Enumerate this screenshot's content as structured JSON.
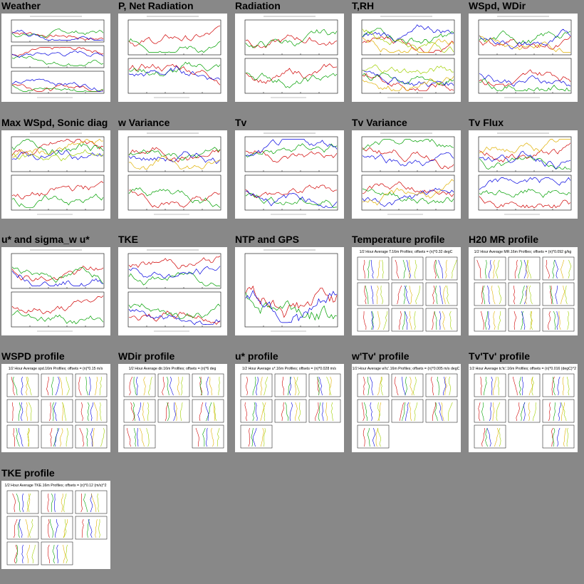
{
  "thumbnails": [
    {
      "title": "Weather",
      "kind": "ts3"
    },
    {
      "title": "P, Net Radiation",
      "kind": "ts2"
    },
    {
      "title": "Radiation",
      "kind": "ts2"
    },
    {
      "title": "T,RH",
      "kind": "ts2"
    },
    {
      "title": "WSpd, WDir",
      "kind": "ts2"
    },
    {
      "title": "Max WSpd, Sonic diag",
      "kind": "ts2"
    },
    {
      "title": "w Variance",
      "kind": "ts2"
    },
    {
      "title": "Tv",
      "kind": "ts2"
    },
    {
      "title": "Tv Variance",
      "kind": "ts2"
    },
    {
      "title": "Tv Flux",
      "kind": "ts2"
    },
    {
      "title": "u* and sigma_w u*",
      "kind": "ts2"
    },
    {
      "title": "TKE",
      "kind": "ts2"
    },
    {
      "title": "NTP and GPS",
      "kind": "ts1"
    },
    {
      "title": "Temperature profile",
      "kind": "prof",
      "ptitle": "1/2 Hour Average T.16m Profiles; offsets = (n)*0.32 degC"
    },
    {
      "title": "H20 MR profile",
      "kind": "prof",
      "ptitle": "1/2 Hour Average MR.16m Profiles; offsets = (n)*0.092 g/kg"
    },
    {
      "title": "WSPD profile",
      "kind": "prof",
      "ptitle": "1/2 Hour Average spd.16m Profiles; offsets = (n)*0.15 m/s"
    },
    {
      "title": "WDir profile",
      "kind": "prof",
      "ptitle": "1/2 Hour Average dir.16m Profiles; offsets = (n)*6 deg"
    },
    {
      "title": "u* profile",
      "kind": "prof",
      "ptitle": "1/2 Hour Average u*.16m Profiles; offsets = (n)*0.028 m/s"
    },
    {
      "title": "w'Tv' profile",
      "kind": "prof",
      "ptitle": "1/2 Hour Average w'tc'.16m Profiles; offsets = (n)*0.005 m/s degC"
    },
    {
      "title": "Tv'Tv' profile",
      "kind": "prof",
      "ptitle": "1/2 Hour Average tc'tc'.16m Profiles; offsets = (n)*0.016 (degC)^2"
    },
    {
      "title": "TKE profile",
      "kind": "prof",
      "ptitle": "1/2 Hour Average TKE.16m Profiles; offsets = (n)*0.12 (m/s)^2"
    }
  ]
}
